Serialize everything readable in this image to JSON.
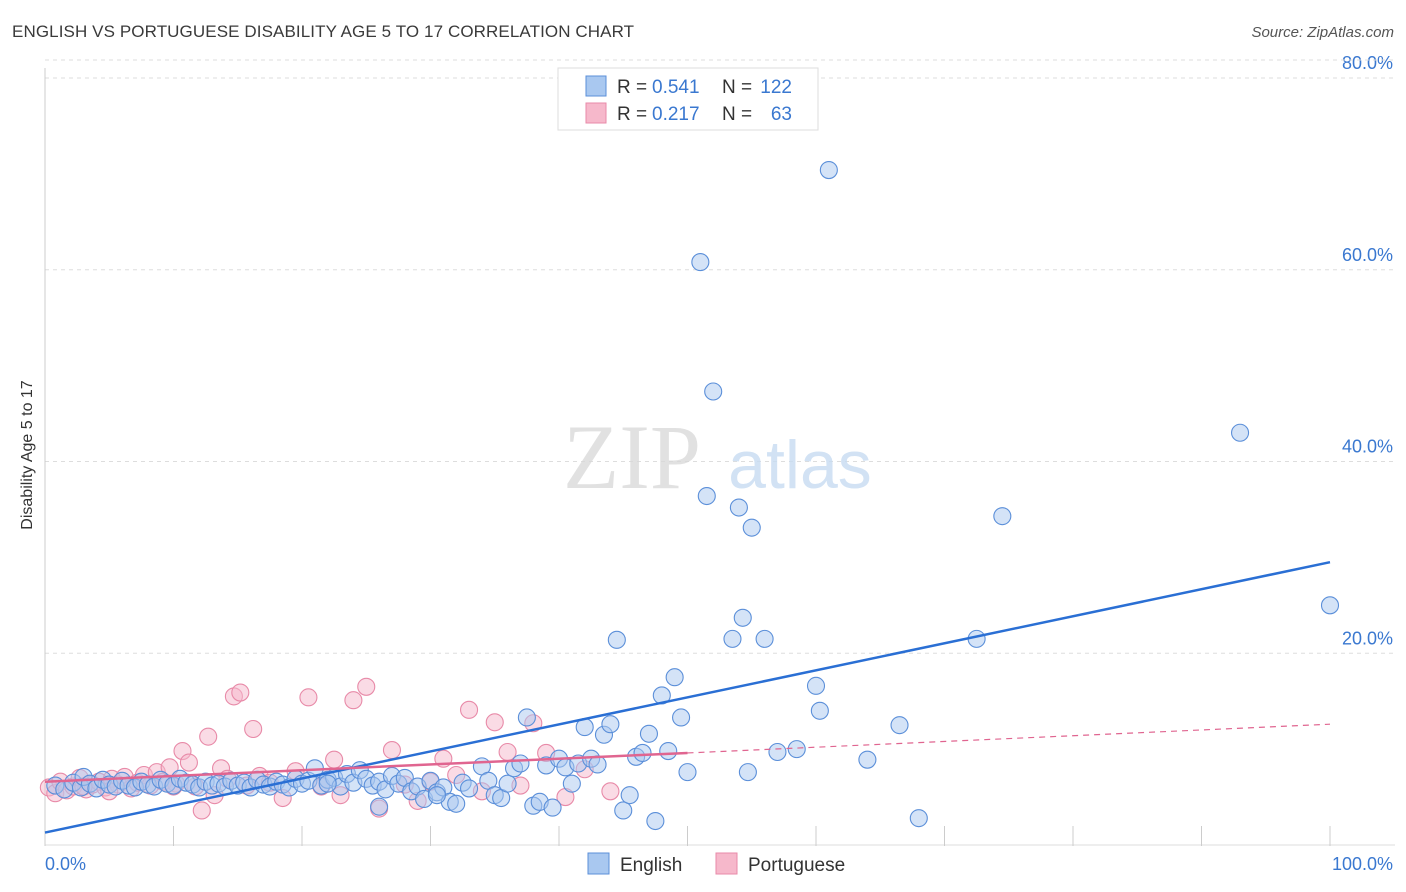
{
  "title": "ENGLISH VS PORTUGUESE DISABILITY AGE 5 TO 17 CORRELATION CHART",
  "source": "Source: ZipAtlas.com",
  "watermark": {
    "zip": "ZIP",
    "atlas": "atlas"
  },
  "colors": {
    "english_fill": "#a9c8f0",
    "english_stroke": "#5b8fd9",
    "english_line": "#2a6fd4",
    "portuguese_fill": "#f6b8cb",
    "portuguese_stroke": "#e88aa8",
    "portuguese_line": "#e06590",
    "axis_text": "#3a78d0",
    "grid": "#dddddd"
  },
  "legend_top": {
    "rows": [
      {
        "r_label": "R =",
        "r_value": "0.541",
        "n_label": "N =",
        "n_value": "122"
      },
      {
        "r_label": "R =",
        "r_value": "0.217",
        "n_label": "N =",
        "n_value": "63"
      }
    ]
  },
  "legend_bottom": {
    "english": "English",
    "portuguese": "Portuguese"
  },
  "chart_data": {
    "type": "scatter",
    "xlabel": "",
    "ylabel": "Disability Age 5 to 17",
    "xlim": [
      0,
      100
    ],
    "ylim": [
      0,
      80
    ],
    "x_tick_labels": [
      "0.0%",
      "100.0%"
    ],
    "y_ticks": [
      20,
      40,
      60,
      80
    ],
    "y_tick_labels": [
      "20.0%",
      "40.0%",
      "60.0%",
      "80.0%"
    ],
    "grid": true,
    "series": [
      {
        "name": "English",
        "R": 0.541,
        "N": 122,
        "trend": {
          "x": [
            0,
            100
          ],
          "y": [
            1.3,
            29.5
          ]
        },
        "points": [
          [
            0.8,
            6.2
          ],
          [
            1.5,
            5.8
          ],
          [
            2.2,
            6.5
          ],
          [
            2.8,
            6.0
          ],
          [
            3.0,
            7.1
          ],
          [
            3.5,
            6.4
          ],
          [
            4.0,
            5.9
          ],
          [
            4.5,
            6.8
          ],
          [
            5.0,
            6.3
          ],
          [
            5.5,
            6.1
          ],
          [
            6.0,
            6.7
          ],
          [
            6.5,
            6.2
          ],
          [
            7.0,
            6.0
          ],
          [
            7.5,
            6.6
          ],
          [
            8.0,
            6.3
          ],
          [
            8.5,
            6.1
          ],
          [
            9.0,
            6.8
          ],
          [
            9.5,
            6.4
          ],
          [
            10.0,
            6.2
          ],
          [
            10.5,
            6.9
          ],
          [
            11.0,
            6.5
          ],
          [
            11.5,
            6.3
          ],
          [
            12.0,
            6.0
          ],
          [
            12.5,
            6.6
          ],
          [
            13.0,
            6.2
          ],
          [
            13.5,
            6.4
          ],
          [
            14.0,
            6.1
          ],
          [
            14.5,
            6.7
          ],
          [
            15.0,
            6.2
          ],
          [
            15.5,
            6.5
          ],
          [
            16.0,
            6.0
          ],
          [
            16.5,
            6.8
          ],
          [
            17.0,
            6.3
          ],
          [
            17.5,
            6.1
          ],
          [
            18.0,
            6.6
          ],
          [
            18.5,
            6.3
          ],
          [
            19.0,
            6.0
          ],
          [
            19.5,
            6.9
          ],
          [
            20.0,
            6.4
          ],
          [
            20.5,
            6.7
          ],
          [
            21.0,
            8.0
          ],
          [
            21.5,
            6.2
          ],
          [
            22.0,
            6.8
          ],
          [
            22.5,
            7.0
          ],
          [
            23.0,
            6.1
          ],
          [
            23.5,
            7.4
          ],
          [
            24.0,
            6.5
          ],
          [
            24.5,
            7.8
          ],
          [
            25.0,
            6.9
          ],
          [
            25.5,
            6.2
          ],
          [
            26.0,
            6.6
          ],
          [
            26.5,
            5.8
          ],
          [
            27.0,
            7.2
          ],
          [
            27.5,
            6.4
          ],
          [
            28.0,
            7.0
          ],
          [
            28.5,
            5.6
          ],
          [
            29.0,
            6.1
          ],
          [
            29.5,
            4.8
          ],
          [
            30.0,
            6.7
          ],
          [
            30.5,
            5.5
          ],
          [
            31.0,
            6.0
          ],
          [
            31.5,
            4.5
          ],
          [
            32.0,
            4.3
          ],
          [
            32.5,
            6.5
          ],
          [
            33.0,
            5.9
          ],
          [
            34.0,
            8.2
          ],
          [
            34.5,
            6.7
          ],
          [
            35.0,
            5.2
          ],
          [
            35.5,
            4.9
          ],
          [
            36.0,
            6.4
          ],
          [
            36.5,
            8.0
          ],
          [
            37.0,
            8.5
          ],
          [
            37.5,
            13.3
          ],
          [
            38.0,
            4.1
          ],
          [
            38.5,
            4.5
          ],
          [
            39.0,
            8.3
          ],
          [
            39.5,
            3.9
          ],
          [
            40.0,
            9.0
          ],
          [
            40.5,
            8.1
          ],
          [
            41.0,
            6.4
          ],
          [
            41.5,
            8.5
          ],
          [
            42.0,
            12.3
          ],
          [
            42.5,
            9.0
          ],
          [
            43.0,
            8.4
          ],
          [
            43.5,
            11.5
          ],
          [
            44.0,
            12.6
          ],
          [
            44.5,
            21.4
          ],
          [
            45.0,
            3.6
          ],
          [
            45.5,
            5.2
          ],
          [
            46.0,
            9.2
          ],
          [
            46.5,
            9.6
          ],
          [
            47.0,
            11.6
          ],
          [
            47.5,
            2.5
          ],
          [
            48.0,
            15.6
          ],
          [
            48.5,
            9.8
          ],
          [
            49.0,
            17.5
          ],
          [
            49.5,
            13.3
          ],
          [
            50.0,
            7.6
          ],
          [
            51.0,
            60.8
          ],
          [
            51.5,
            36.4
          ],
          [
            52.0,
            47.3
          ],
          [
            53.5,
            21.5
          ],
          [
            54.0,
            35.2
          ],
          [
            54.3,
            23.7
          ],
          [
            54.7,
            7.6
          ],
          [
            55.0,
            33.1
          ],
          [
            56.0,
            21.5
          ],
          [
            57.0,
            9.7
          ],
          [
            58.5,
            10.0
          ],
          [
            60.0,
            16.6
          ],
          [
            60.3,
            14.0
          ],
          [
            61.0,
            70.4
          ],
          [
            64.0,
            8.9
          ],
          [
            66.5,
            12.5
          ],
          [
            68.0,
            2.8
          ],
          [
            72.5,
            21.5
          ],
          [
            74.5,
            34.3
          ],
          [
            93.0,
            43.0
          ],
          [
            100.0,
            25.0
          ],
          [
            22.0,
            6.4
          ],
          [
            30.5,
            5.2
          ],
          [
            26.0,
            4.0
          ]
        ]
      },
      {
        "name": "Portuguese",
        "R": 0.217,
        "N": 63,
        "trend": {
          "x": [
            0,
            50
          ],
          "y": [
            6.6,
            9.6
          ]
        },
        "trend_dashed": {
          "x": [
            50,
            100
          ],
          "y": [
            9.6,
            12.6
          ]
        },
        "points": [
          [
            0.3,
            6.0
          ],
          [
            0.8,
            5.4
          ],
          [
            1.2,
            6.6
          ],
          [
            1.7,
            5.7
          ],
          [
            2.2,
            6.1
          ],
          [
            2.7,
            7.0
          ],
          [
            3.2,
            5.8
          ],
          [
            3.7,
            6.3
          ],
          [
            4.2,
            6.6
          ],
          [
            4.7,
            6.0
          ],
          [
            5.2,
            6.9
          ],
          [
            5.7,
            6.3
          ],
          [
            6.2,
            7.1
          ],
          [
            6.7,
            5.9
          ],
          [
            7.2,
            6.5
          ],
          [
            7.7,
            7.3
          ],
          [
            8.2,
            6.2
          ],
          [
            8.7,
            7.6
          ],
          [
            9.2,
            6.6
          ],
          [
            9.7,
            8.1
          ],
          [
            10.2,
            6.4
          ],
          [
            10.7,
            9.8
          ],
          [
            11.2,
            8.6
          ],
          [
            11.7,
            6.1
          ],
          [
            12.2,
            3.6
          ],
          [
            12.7,
            11.3
          ],
          [
            13.2,
            5.2
          ],
          [
            13.7,
            8.0
          ],
          [
            14.2,
            6.9
          ],
          [
            14.7,
            15.5
          ],
          [
            15.2,
            15.9
          ],
          [
            15.7,
            6.2
          ],
          [
            16.2,
            12.1
          ],
          [
            16.7,
            7.2
          ],
          [
            17.5,
            6.5
          ],
          [
            18.5,
            4.9
          ],
          [
            19.5,
            7.7
          ],
          [
            20.5,
            15.4
          ],
          [
            21.5,
            6.1
          ],
          [
            22.5,
            8.9
          ],
          [
            23.0,
            5.2
          ],
          [
            24.0,
            15.1
          ],
          [
            25.0,
            16.5
          ],
          [
            26.0,
            3.8
          ],
          [
            27.0,
            9.9
          ],
          [
            28.0,
            6.3
          ],
          [
            29.0,
            4.6
          ],
          [
            30.0,
            6.6
          ],
          [
            31.0,
            9.0
          ],
          [
            32.0,
            7.3
          ],
          [
            33.0,
            14.1
          ],
          [
            34.0,
            5.6
          ],
          [
            35.0,
            12.8
          ],
          [
            36.0,
            9.7
          ],
          [
            37.0,
            6.2
          ],
          [
            38.0,
            12.7
          ],
          [
            39.0,
            9.6
          ],
          [
            40.5,
            5.0
          ],
          [
            42.0,
            7.9
          ],
          [
            44.0,
            5.6
          ],
          [
            10.0,
            6.1
          ],
          [
            5.0,
            5.6
          ],
          [
            3.0,
            6.1
          ]
        ]
      }
    ]
  }
}
